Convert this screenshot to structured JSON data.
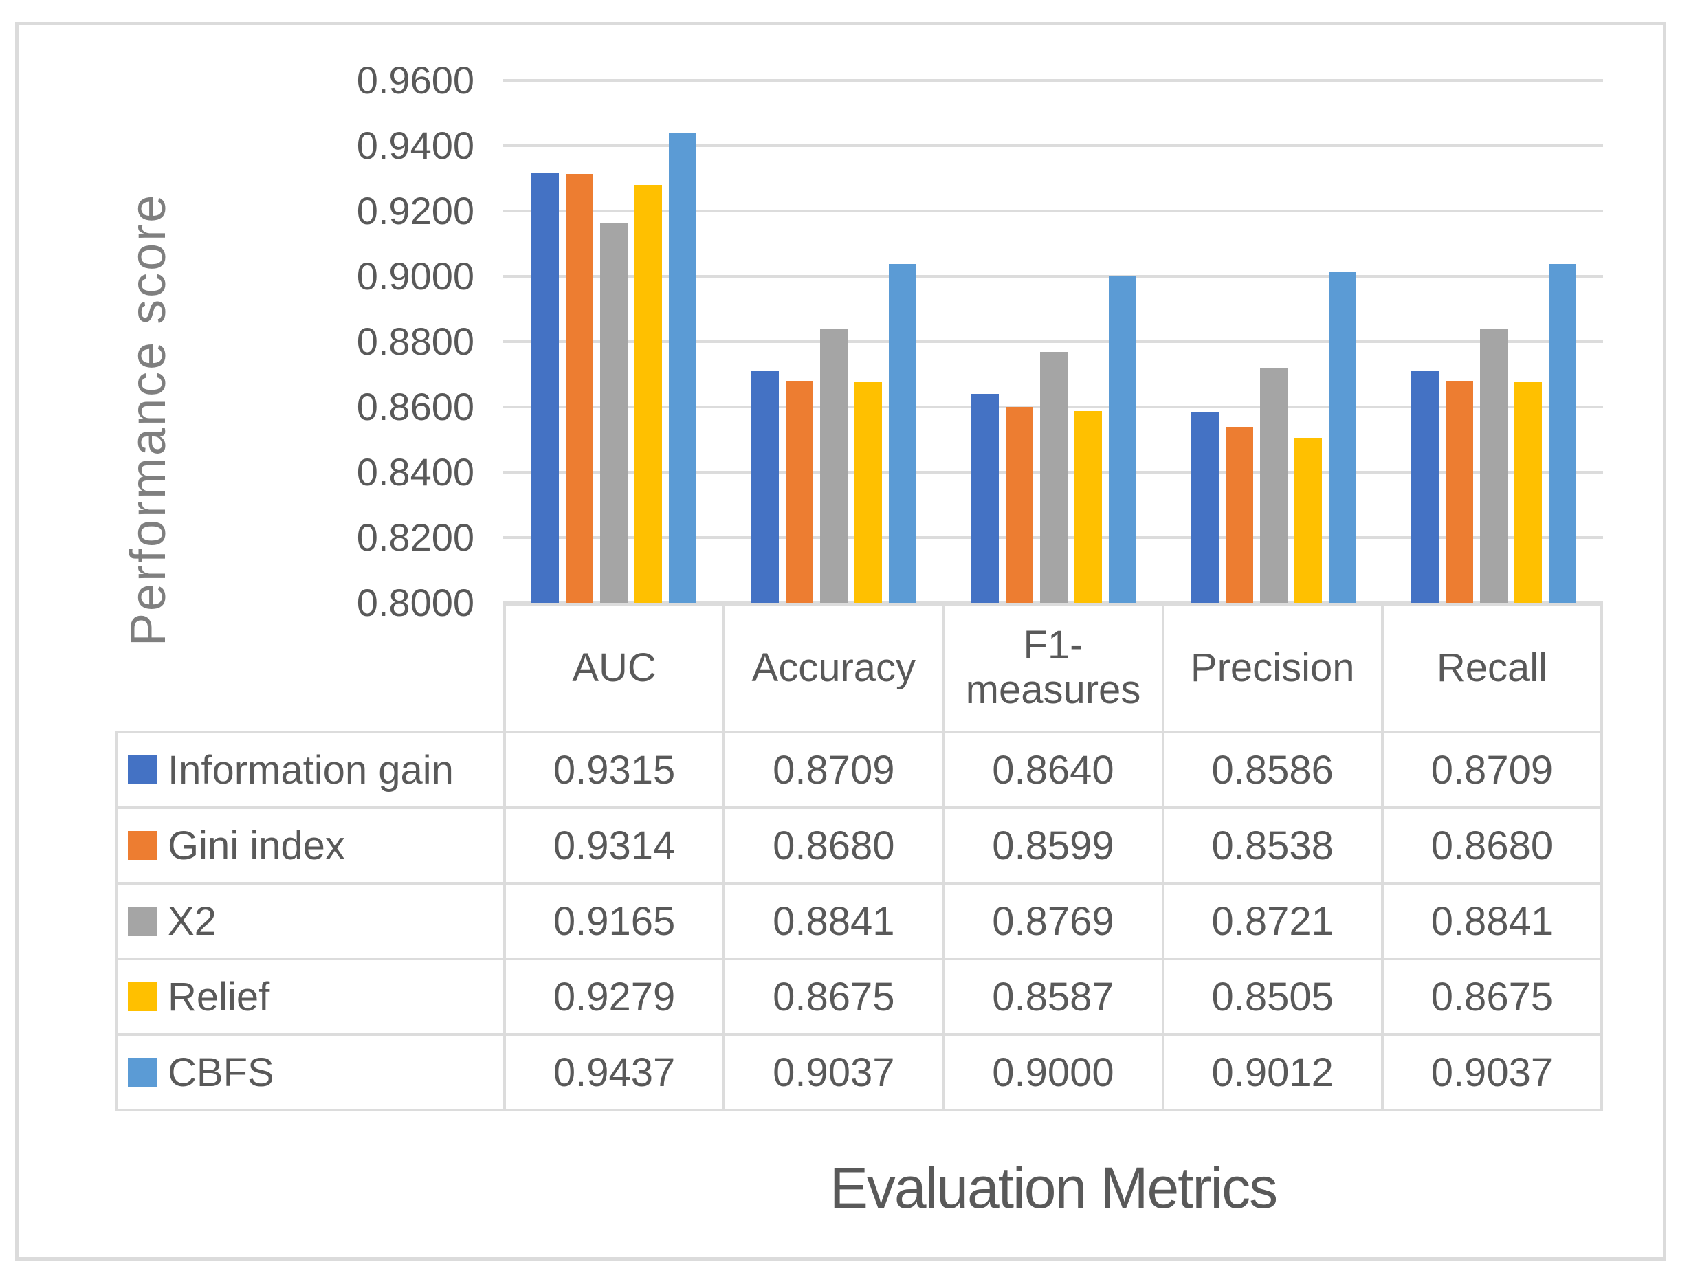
{
  "figure": {
    "border_color": "#DBDBDB",
    "background": "#FFFFFF",
    "text_color": "#595959",
    "gridline_color": "#DCDCDC",
    "axis_title_color": "#7F7F7F"
  },
  "chart_data": {
    "type": "bar",
    "title": "",
    "xlabel": "Evaluation Metrics",
    "ylabel": "Performance score",
    "categories": [
      "AUC",
      "Accuracy",
      "F1-measures",
      "Precision",
      "Recall"
    ],
    "category_display": [
      "AUC",
      "Accuracy",
      "F1-\nmeasures",
      "Precision",
      "Recall"
    ],
    "series": [
      {
        "name": "Information gain",
        "color": "#4472C4",
        "values": [
          0.9315,
          0.8709,
          0.864,
          0.8586,
          0.8709
        ]
      },
      {
        "name": "Gini index",
        "color": "#ED7D31",
        "values": [
          0.9314,
          0.868,
          0.8599,
          0.8538,
          0.868
        ]
      },
      {
        "name": "X2",
        "color": "#A5A5A5",
        "values": [
          0.9165,
          0.8841,
          0.8769,
          0.8721,
          0.8841
        ]
      },
      {
        "name": "Relief",
        "color": "#FFC000",
        "values": [
          0.9279,
          0.8675,
          0.8587,
          0.8505,
          0.8675
        ]
      },
      {
        "name": "CBFS",
        "color": "#5B9BD5",
        "values": [
          0.9437,
          0.9037,
          0.9,
          0.9012,
          0.9037
        ]
      }
    ],
    "y_axis": {
      "min": 0.8,
      "max": 0.96,
      "step": 0.02,
      "tick_labels": [
        "0.8000",
        "0.8200",
        "0.8400",
        "0.8600",
        "0.8800",
        "0.9000",
        "0.9200",
        "0.9400",
        "0.9600"
      ]
    },
    "value_decimals": 4,
    "gridlines": true,
    "legend_position": "table-rows-left",
    "data_table": true
  }
}
